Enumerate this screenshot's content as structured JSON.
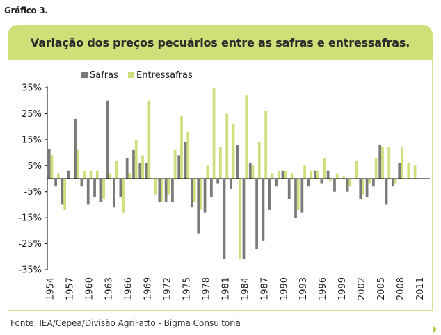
{
  "figure_label": "Gráfico 3.",
  "source": "Fonte: IEA/Cepea/Divisão AgriFatto - Bigma Consultoria",
  "colors": {
    "safras": "#7a7a7a",
    "entressafras": "#d2dd7c",
    "title_bg": "#d1df79",
    "axis": "#000000"
  },
  "chart_data": {
    "type": "bar",
    "title": "Variação dos preços pecuários entre as safras e entressafras.",
    "xlabel": "",
    "ylabel": "",
    "ylim": [
      -35,
      35
    ],
    "yticks": [
      35,
      25,
      15,
      5,
      -5,
      -15,
      -25,
      -35
    ],
    "ytick_labels": [
      "35%",
      "25%",
      "15%",
      "5%",
      "-5%",
      "-15%",
      "-25%",
      "-35%"
    ],
    "legend_position": "top-left",
    "grid": false,
    "categories": [
      1954,
      1955,
      1956,
      1957,
      1958,
      1959,
      1960,
      1961,
      1962,
      1963,
      1964,
      1965,
      1966,
      1967,
      1968,
      1969,
      1970,
      1971,
      1972,
      1973,
      1974,
      1975,
      1976,
      1977,
      1978,
      1979,
      1980,
      1981,
      1982,
      1983,
      1984,
      1985,
      1986,
      1987,
      1988,
      1989,
      1990,
      1991,
      1992,
      1993,
      1994,
      1995,
      1996,
      1997,
      1998,
      1999,
      2000,
      2001,
      2002,
      2003,
      2004,
      2005,
      2006,
      2007,
      2008,
      2009,
      2010,
      2011,
      2012
    ],
    "xtick_labels": [
      "1954",
      "1957",
      "1960",
      "1963",
      "1966",
      "1969",
      "1972",
      "1975",
      "1978",
      "1981",
      "1984",
      "1987",
      "1990",
      "1993",
      "1996",
      "1999",
      "2002",
      "2005",
      "2008",
      "2011"
    ],
    "series": [
      {
        "name": "Safras",
        "values": [
          11.5,
          -3,
          -10,
          3,
          23,
          -3,
          -10,
          -7,
          -9,
          30,
          -11,
          -7,
          8,
          11,
          6,
          6,
          0,
          -9,
          -9,
          -9,
          9,
          14,
          -11,
          -21,
          -13,
          -7,
          -2,
          -31,
          -4,
          13,
          -31,
          6,
          -27,
          -24,
          -12,
          -3,
          3,
          -8,
          -15,
          -13,
          -3,
          3,
          -2,
          3,
          -5,
          0,
          -5,
          0,
          -8,
          -7,
          -3,
          13,
          -10,
          -3,
          6,
          0,
          0,
          0,
          0
        ],
        "color_key": "safras"
      },
      {
        "name": "Entressafras",
        "values": [
          9,
          2,
          -12,
          0,
          11,
          3,
          3,
          3,
          -8,
          2,
          7,
          -13,
          2,
          15,
          9,
          30,
          -6,
          -9,
          -6,
          11,
          24,
          18,
          -9,
          -12,
          5,
          35,
          12,
          25,
          21,
          -31,
          32,
          5,
          14,
          26,
          2,
          3,
          3,
          2,
          -12,
          5,
          3,
          3,
          8,
          -1,
          2,
          1,
          -3,
          7,
          -6,
          -2,
          8,
          12,
          12,
          -2,
          12,
          6,
          5,
          0,
          0
        ]
      }
    ]
  }
}
